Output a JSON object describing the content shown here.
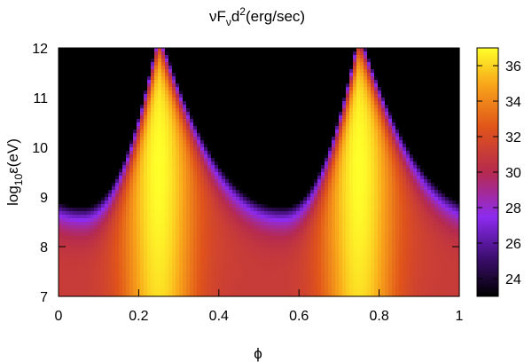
{
  "chart_data": {
    "type": "heatmap",
    "title": {
      "main": "νF",
      "sub1": "ν",
      "mid": "d",
      "sup": "2",
      "tail": "(erg/sec)"
    },
    "xlabel": "ϕ",
    "ylabel": {
      "main": "log",
      "sub": "10",
      "tail": "ε(eV)"
    },
    "xlim": [
      0,
      1
    ],
    "ylim": [
      7,
      12
    ],
    "x_ticks": [
      "0",
      "0.2",
      "0.4",
      "0.6",
      "0.8",
      "1"
    ],
    "y_ticks": [
      "7",
      "8",
      "9",
      "10",
      "11",
      "12"
    ],
    "colorbar": {
      "range": [
        23,
        37
      ],
      "ticks": [
        "24",
        "26",
        "28",
        "30",
        "32",
        "34",
        "36"
      ],
      "palette": "black-purple-red-orange-yellow"
    },
    "model": {
      "peak_phases": [
        0.25,
        0.75
      ],
      "cutoff_min_phases": [
        0.06,
        0.56
      ],
      "cutoff_at_min": 8.8,
      "cutoff_at_peak": 12.4,
      "peak_value": 37,
      "background_value": 23
    }
  }
}
